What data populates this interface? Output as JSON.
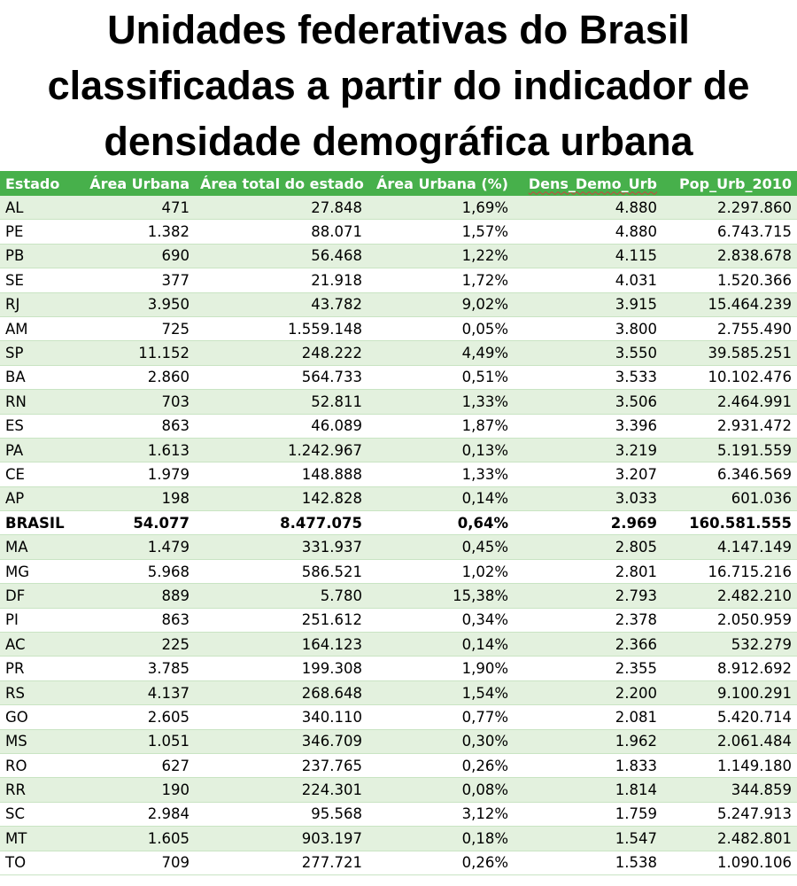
{
  "title": {
    "line1": "Unidades federativas do Brasil",
    "line2": "classificadas a partir do indicador de",
    "line3": "densidade demográfica urbana"
  },
  "table": {
    "headers": [
      "Estado",
      "Área Urbana",
      "Área total do estado",
      "Área Urbana (%)",
      "Dens_Demo_Urb",
      "Pop_Urb_2010"
    ],
    "header_color": "#47b04b",
    "stripe_color": "#e3f1de",
    "rows": [
      {
        "estado": "AL",
        "area_urbana": "471",
        "area_total": "27.848",
        "area_urbana_pct": "1,69%",
        "dens_demo_urb": "4.880",
        "pop_urb_2010": "2.297.860"
      },
      {
        "estado": "PE",
        "area_urbana": "1.382",
        "area_total": "88.071",
        "area_urbana_pct": "1,57%",
        "dens_demo_urb": "4.880",
        "pop_urb_2010": "6.743.715"
      },
      {
        "estado": "PB",
        "area_urbana": "690",
        "area_total": "56.468",
        "area_urbana_pct": "1,22%",
        "dens_demo_urb": "4.115",
        "pop_urb_2010": "2.838.678"
      },
      {
        "estado": "SE",
        "area_urbana": "377",
        "area_total": "21.918",
        "area_urbana_pct": "1,72%",
        "dens_demo_urb": "4.031",
        "pop_urb_2010": "1.520.366"
      },
      {
        "estado": "RJ",
        "area_urbana": "3.950",
        "area_total": "43.782",
        "area_urbana_pct": "9,02%",
        "dens_demo_urb": "3.915",
        "pop_urb_2010": "15.464.239"
      },
      {
        "estado": "AM",
        "area_urbana": "725",
        "area_total": "1.559.148",
        "area_urbana_pct": "0,05%",
        "dens_demo_urb": "3.800",
        "pop_urb_2010": "2.755.490"
      },
      {
        "estado": "SP",
        "area_urbana": "11.152",
        "area_total": "248.222",
        "area_urbana_pct": "4,49%",
        "dens_demo_urb": "3.550",
        "pop_urb_2010": "39.585.251"
      },
      {
        "estado": "BA",
        "area_urbana": "2.860",
        "area_total": "564.733",
        "area_urbana_pct": "0,51%",
        "dens_demo_urb": "3.533",
        "pop_urb_2010": "10.102.476"
      },
      {
        "estado": "RN",
        "area_urbana": "703",
        "area_total": "52.811",
        "area_urbana_pct": "1,33%",
        "dens_demo_urb": "3.506",
        "pop_urb_2010": "2.464.991"
      },
      {
        "estado": "ES",
        "area_urbana": "863",
        "area_total": "46.089",
        "area_urbana_pct": "1,87%",
        "dens_demo_urb": "3.396",
        "pop_urb_2010": "2.931.472"
      },
      {
        "estado": "PA",
        "area_urbana": "1.613",
        "area_total": "1.242.967",
        "area_urbana_pct": "0,13%",
        "dens_demo_urb": "3.219",
        "pop_urb_2010": "5.191.559"
      },
      {
        "estado": "CE",
        "area_urbana": "1.979",
        "area_total": "148.888",
        "area_urbana_pct": "1,33%",
        "dens_demo_urb": "3.207",
        "pop_urb_2010": "6.346.569"
      },
      {
        "estado": "AP",
        "area_urbana": "198",
        "area_total": "142.828",
        "area_urbana_pct": "0,14%",
        "dens_demo_urb": "3.033",
        "pop_urb_2010": "601.036"
      },
      {
        "estado": "BRASIL",
        "area_urbana": "54.077",
        "area_total": "8.477.075",
        "area_urbana_pct": "0,64%",
        "dens_demo_urb": "2.969",
        "pop_urb_2010": "160.581.555",
        "bold": true
      },
      {
        "estado": "MA",
        "area_urbana": "1.479",
        "area_total": "331.937",
        "area_urbana_pct": "0,45%",
        "dens_demo_urb": "2.805",
        "pop_urb_2010": "4.147.149"
      },
      {
        "estado": "MG",
        "area_urbana": "5.968",
        "area_total": "586.521",
        "area_urbana_pct": "1,02%",
        "dens_demo_urb": "2.801",
        "pop_urb_2010": "16.715.216"
      },
      {
        "estado": "DF",
        "area_urbana": "889",
        "area_total": "5.780",
        "area_urbana_pct": "15,38%",
        "dens_demo_urb": "2.793",
        "pop_urb_2010": "2.482.210"
      },
      {
        "estado": "PI",
        "area_urbana": "863",
        "area_total": "251.612",
        "area_urbana_pct": "0,34%",
        "dens_demo_urb": "2.378",
        "pop_urb_2010": "2.050.959"
      },
      {
        "estado": "AC",
        "area_urbana": "225",
        "area_total": "164.123",
        "area_urbana_pct": "0,14%",
        "dens_demo_urb": "2.366",
        "pop_urb_2010": "532.279"
      },
      {
        "estado": "PR",
        "area_urbana": "3.785",
        "area_total": "199.308",
        "area_urbana_pct": "1,90%",
        "dens_demo_urb": "2.355",
        "pop_urb_2010": "8.912.692"
      },
      {
        "estado": "RS",
        "area_urbana": "4.137",
        "area_total": "268.648",
        "area_urbana_pct": "1,54%",
        "dens_demo_urb": "2.200",
        "pop_urb_2010": "9.100.291"
      },
      {
        "estado": "GO",
        "area_urbana": "2.605",
        "area_total": "340.110",
        "area_urbana_pct": "0,77%",
        "dens_demo_urb": "2.081",
        "pop_urb_2010": "5.420.714"
      },
      {
        "estado": "MS",
        "area_urbana": "1.051",
        "area_total": "346.709",
        "area_urbana_pct": "0,30%",
        "dens_demo_urb": "1.962",
        "pop_urb_2010": "2.061.484"
      },
      {
        "estado": "RO",
        "area_urbana": "627",
        "area_total": "237.765",
        "area_urbana_pct": "0,26%",
        "dens_demo_urb": "1.833",
        "pop_urb_2010": "1.149.180"
      },
      {
        "estado": "RR",
        "area_urbana": "190",
        "area_total": "224.301",
        "area_urbana_pct": "0,08%",
        "dens_demo_urb": "1.814",
        "pop_urb_2010": "344.859"
      },
      {
        "estado": "SC",
        "area_urbana": "2.984",
        "area_total": "95.568",
        "area_urbana_pct": "3,12%",
        "dens_demo_urb": "1.759",
        "pop_urb_2010": "5.247.913"
      },
      {
        "estado": "MT",
        "area_urbana": "1.605",
        "area_total": "903.197",
        "area_urbana_pct": "0,18%",
        "dens_demo_urb": "1.547",
        "pop_urb_2010": "2.482.801"
      },
      {
        "estado": "TO",
        "area_urbana": "709",
        "area_total": "277.721",
        "area_urbana_pct": "0,26%",
        "dens_demo_urb": "1.538",
        "pop_urb_2010": "1.090.106"
      }
    ]
  }
}
